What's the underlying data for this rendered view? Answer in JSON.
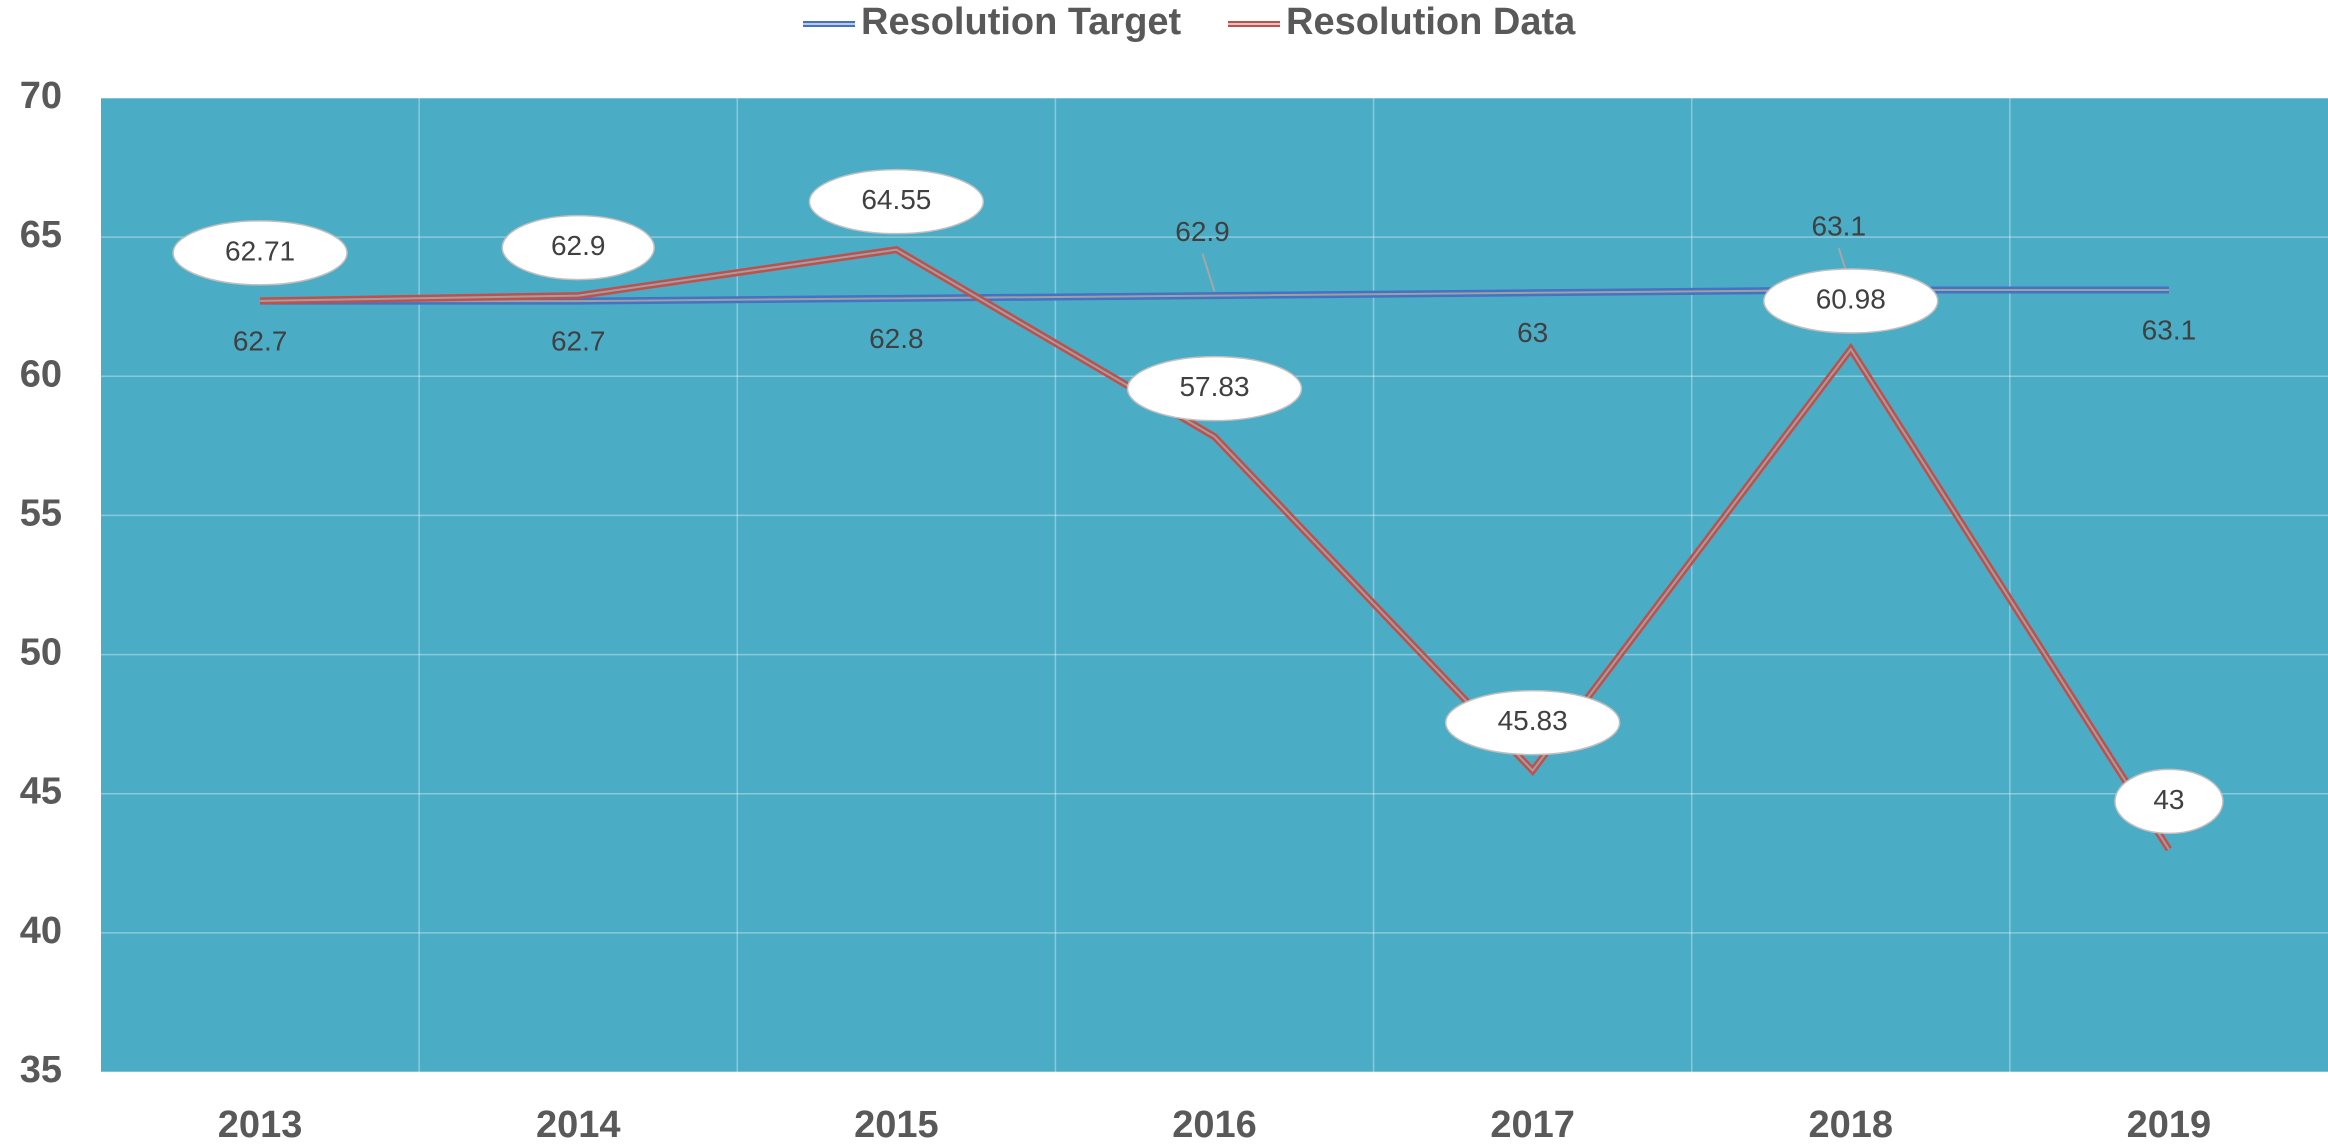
{
  "chart_data": {
    "type": "line",
    "categories": [
      "2013",
      "2014",
      "2015",
      "2016",
      "2017",
      "2018",
      "2019"
    ],
    "series": [
      {
        "name": "Resolution Target",
        "color": "#4472c4",
        "values": [
          62.7,
          62.7,
          62.8,
          62.9,
          63,
          63.1,
          63.1
        ]
      },
      {
        "name": "Resolution Data",
        "color": "#c0504d",
        "values": [
          62.71,
          62.9,
          64.55,
          57.83,
          45.83,
          60.98,
          43
        ]
      }
    ],
    "ylim": [
      35,
      70
    ],
    "yticks": [
      35,
      40,
      45,
      50,
      55,
      60,
      65,
      70
    ],
    "grid": true,
    "plot_background": "#4bacc6",
    "legend": "top"
  }
}
